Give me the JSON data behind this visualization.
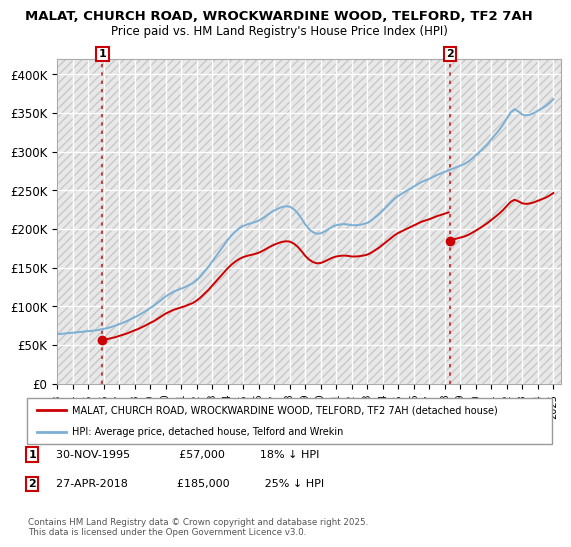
{
  "title1": "MALAT, CHURCH ROAD, WROCKWARDINE WOOD, TELFORD, TF2 7AH",
  "title2": "Price paid vs. HM Land Registry's House Price Index (HPI)",
  "background_color": "#ffffff",
  "plot_bg_color": "#e8e8e8",
  "grid_color": "#ffffff",
  "ylim": [
    0,
    420000
  ],
  "yticks": [
    0,
    50000,
    100000,
    150000,
    200000,
    250000,
    300000,
    350000,
    400000
  ],
  "ytick_labels": [
    "£0",
    "£50K",
    "£100K",
    "£150K",
    "£200K",
    "£250K",
    "£300K",
    "£350K",
    "£400K"
  ],
  "marker1_date": 1995.92,
  "marker1_price": 57000,
  "marker2_date": 2018.33,
  "marker2_price": 185000,
  "legend_line1": "MALAT, CHURCH ROAD, WROCKWARDINE WOOD, TELFORD, TF2 7AH (detached house)",
  "legend_line2": "HPI: Average price, detached house, Telford and Wrekin",
  "legend_line1_color": "#cc0000",
  "legend_line2_color": "#7bafd4",
  "copyright": "Contains HM Land Registry data © Crown copyright and database right 2025.\nThis data is licensed under the Open Government Licence v3.0.",
  "hpi_dates": [
    1993.0,
    1993.25,
    1993.5,
    1993.75,
    1994.0,
    1994.25,
    1994.5,
    1994.75,
    1995.0,
    1995.25,
    1995.5,
    1995.75,
    1996.0,
    1996.25,
    1996.5,
    1996.75,
    1997.0,
    1997.25,
    1997.5,
    1997.75,
    1998.0,
    1998.25,
    1998.5,
    1998.75,
    1999.0,
    1999.25,
    1999.5,
    1999.75,
    2000.0,
    2000.25,
    2000.5,
    2000.75,
    2001.0,
    2001.25,
    2001.5,
    2001.75,
    2002.0,
    2002.25,
    2002.5,
    2002.75,
    2003.0,
    2003.25,
    2003.5,
    2003.75,
    2004.0,
    2004.25,
    2004.5,
    2004.75,
    2005.0,
    2005.25,
    2005.5,
    2005.75,
    2006.0,
    2006.25,
    2006.5,
    2006.75,
    2007.0,
    2007.25,
    2007.5,
    2007.75,
    2008.0,
    2008.25,
    2008.5,
    2008.75,
    2009.0,
    2009.25,
    2009.5,
    2009.75,
    2010.0,
    2010.25,
    2010.5,
    2010.75,
    2011.0,
    2011.25,
    2011.5,
    2011.75,
    2012.0,
    2012.25,
    2012.5,
    2012.75,
    2013.0,
    2013.25,
    2013.5,
    2013.75,
    2014.0,
    2014.25,
    2014.5,
    2014.75,
    2015.0,
    2015.25,
    2015.5,
    2015.75,
    2016.0,
    2016.25,
    2016.5,
    2016.75,
    2017.0,
    2017.25,
    2017.5,
    2017.75,
    2018.0,
    2018.25,
    2018.5,
    2018.75,
    2019.0,
    2019.25,
    2019.5,
    2019.75,
    2020.0,
    2020.25,
    2020.5,
    2020.75,
    2021.0,
    2021.25,
    2021.5,
    2021.75,
    2022.0,
    2022.25,
    2022.5,
    2022.75,
    2023.0,
    2023.25,
    2023.5,
    2023.75,
    2024.0,
    2024.25,
    2024.5,
    2024.75,
    2025.0
  ],
  "hpi_values": [
    64000,
    64500,
    65000,
    65500,
    66000,
    66500,
    67000,
    67500,
    68000,
    68500,
    69000,
    70000,
    71000,
    72000,
    73500,
    75000,
    77000,
    79000,
    81000,
    83500,
    86000,
    88500,
    91500,
    94500,
    98000,
    101000,
    105000,
    109000,
    113000,
    116000,
    119000,
    121000,
    123000,
    125000,
    127500,
    130000,
    134000,
    139000,
    145000,
    151000,
    158000,
    165000,
    172000,
    179000,
    186000,
    192000,
    197000,
    201000,
    204000,
    206000,
    207500,
    209000,
    211000,
    214000,
    217500,
    221000,
    224000,
    226500,
    228500,
    229500,
    229000,
    226000,
    221000,
    214000,
    206000,
    200000,
    196000,
    194000,
    194500,
    197000,
    200000,
    203000,
    205000,
    206000,
    206500,
    206000,
    205000,
    205000,
    205500,
    206500,
    208000,
    211000,
    215000,
    219000,
    224000,
    229000,
    234000,
    239000,
    243000,
    246000,
    249000,
    252000,
    255000,
    258000,
    261000,
    263000,
    265000,
    267500,
    270000,
    272000,
    274000,
    276000,
    278000,
    280000,
    282000,
    284000,
    287000,
    291000,
    295500,
    300000,
    305000,
    310000,
    316000,
    322000,
    328000,
    335000,
    343000,
    351000,
    355000,
    352000,
    348000,
    347000,
    348000,
    350000,
    353000,
    356000,
    359000,
    363000,
    368000
  ],
  "price_dates": [
    1995.92,
    2018.33
  ],
  "price_values": [
    57000,
    185000
  ],
  "xmin": 1993.0,
  "xmax": 2025.5,
  "xticks": [
    1993,
    1994,
    1995,
    1996,
    1997,
    1998,
    1999,
    2000,
    2001,
    2002,
    2003,
    2004,
    2005,
    2006,
    2007,
    2008,
    2009,
    2010,
    2011,
    2012,
    2013,
    2014,
    2015,
    2016,
    2017,
    2018,
    2019,
    2020,
    2021,
    2022,
    2023,
    2024,
    2025
  ]
}
